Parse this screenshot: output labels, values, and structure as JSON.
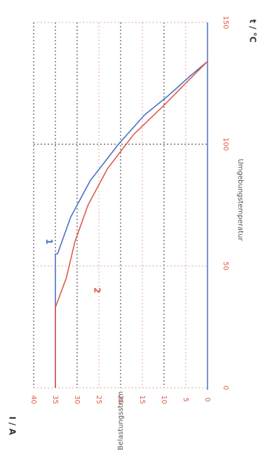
{
  "chart_data": {
    "type": "line",
    "x_axis": {
      "label": "Umgebungstemperatur",
      "unit": "t / °C",
      "range": [
        0,
        150
      ],
      "ticks": [
        {
          "value": 0,
          "label": "0"
        },
        {
          "value": 50,
          "label": "50"
        },
        {
          "value": 100,
          "label": "100"
        },
        {
          "value": 150,
          "label": "150"
        }
      ]
    },
    "y_axis": {
      "label": "Belastungsstrom",
      "unit": "I / A",
      "range": [
        0,
        40
      ],
      "ticks": [
        {
          "value": 40,
          "label": "40"
        },
        {
          "value": 35,
          "label": "35"
        },
        {
          "value": 30,
          "label": "30"
        },
        {
          "value": 25,
          "label": "25"
        },
        {
          "value": 20,
          "label": "20"
        },
        {
          "value": 15,
          "label": "15"
        },
        {
          "value": 10,
          "label": "10"
        },
        {
          "value": 5,
          "label": "5"
        },
        {
          "value": 0,
          "label": "0"
        }
      ]
    },
    "grid": true,
    "series": [
      {
        "name": "1",
        "color": "#4a72c4",
        "points": [
          [
            0,
            35
          ],
          [
            55,
            35
          ],
          [
            55,
            34.5
          ],
          [
            70,
            31.5
          ],
          [
            85,
            27
          ],
          [
            100,
            20.5
          ],
          [
            112,
            14.5
          ],
          [
            120,
            9
          ],
          [
            128,
            4
          ],
          [
            134,
            0
          ]
        ]
      },
      {
        "name": "2",
        "color": "#e05a4a",
        "points": [
          [
            0,
            35
          ],
          [
            33,
            35
          ],
          [
            45,
            32.5
          ],
          [
            60,
            30.5
          ],
          [
            75,
            27.5
          ],
          [
            90,
            23
          ],
          [
            104,
            17
          ],
          [
            116,
            10
          ],
          [
            126,
            4.5
          ],
          [
            134,
            0
          ]
        ]
      }
    ],
    "curve_labels": [
      {
        "text": "1",
        "color": "#4a72c4",
        "x": 60,
        "y": 36.5
      },
      {
        "text": "2",
        "color": "#e05a4a",
        "x": 40,
        "y": 25.5
      }
    ],
    "colors": {
      "red": "#e05a4a",
      "blue": "#4a72c4",
      "grid_dark": "#333333",
      "grid_light": "#e2a6a6",
      "axis": "#4a72c4"
    }
  }
}
